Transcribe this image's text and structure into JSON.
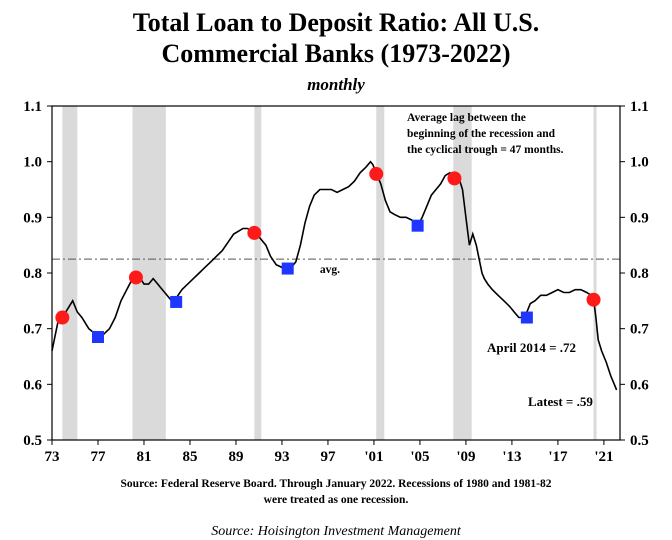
{
  "chart_data": {
    "type": "line",
    "title_line1": "Total Loan to Deposit Ratio: All U.S.",
    "title_line2": "Commercial Banks (1973-2022)",
    "subtitle": "monthly",
    "x_tick_labels": [
      "73",
      "77",
      "81",
      "85",
      "89",
      "93",
      "97",
      "'01",
      "'05",
      "'09",
      "'13",
      "'17",
      "'21"
    ],
    "x_tick_years": [
      1973,
      1977,
      1981,
      1985,
      1989,
      1993,
      1997,
      2001,
      2005,
      2009,
      2013,
      2017,
      2021
    ],
    "xlim": [
      1973,
      2022.4
    ],
    "y_tick_labels": [
      "0.5",
      "0.6",
      "0.7",
      "0.8",
      "0.9",
      "1.0",
      "1.1"
    ],
    "ylim": [
      0.5,
      1.1
    ],
    "grid": false,
    "average": 0.825,
    "avg_label": "avg.",
    "recessions": [
      [
        1973.9,
        1975.2
      ],
      [
        1980.0,
        1982.9
      ],
      [
        1990.6,
        1991.2
      ],
      [
        2001.2,
        2001.9
      ],
      [
        2007.9,
        2009.5
      ],
      [
        2020.1,
        2020.3
      ]
    ],
    "series": [
      {
        "x": [
          1973.0,
          1973.5,
          1973.9,
          1974.5,
          1974.8,
          1975.2,
          1975.6,
          1976.2,
          1976.8,
          1977.0,
          1977.5,
          1978.0,
          1978.5,
          1979.0,
          1979.5,
          1980.0,
          1980.3,
          1980.7,
          1981.0,
          1981.4,
          1981.8,
          1982.2,
          1982.6,
          1983.0,
          1983.4,
          1983.8,
          1984.3,
          1984.8,
          1985.3,
          1985.8,
          1986.3,
          1986.8,
          1987.3,
          1987.8,
          1988.3,
          1988.8,
          1989.2,
          1989.6,
          1990.0,
          1990.4,
          1990.8,
          1991.2,
          1991.6,
          1992.0,
          1992.5,
          1993.0,
          1993.4,
          1993.8,
          1994.2,
          1994.6,
          1995.0,
          1995.4,
          1995.8,
          1996.3,
          1996.8,
          1997.3,
          1997.8,
          1998.3,
          1998.8,
          1999.3,
          1999.8,
          2000.3,
          2000.7,
          2000.9,
          2001.2,
          2001.6,
          2002.0,
          2002.4,
          2002.8,
          2003.3,
          2003.8,
          2004.3,
          2004.8,
          2005.2,
          2005.6,
          2006.0,
          2006.4,
          2006.8,
          2007.2,
          2007.6,
          2007.9,
          2008.1,
          2008.4,
          2008.7,
          2009.0,
          2009.3,
          2009.6,
          2009.9,
          2010.2,
          2010.4,
          2010.6,
          2010.9,
          2011.3,
          2011.8,
          2012.3,
          2012.8,
          2013.2,
          2013.6,
          2014.0,
          2014.3,
          2014.6,
          2015.0,
          2015.5,
          2016.0,
          2016.5,
          2017.0,
          2017.5,
          2018.0,
          2018.5,
          2019.0,
          2019.5,
          2019.9,
          2020.1,
          2020.3,
          2020.5,
          2020.8,
          2021.2,
          2021.6,
          2021.9,
          2022.1
        ],
        "y": [
          0.66,
          0.71,
          0.72,
          0.74,
          0.75,
          0.73,
          0.72,
          0.7,
          0.69,
          0.685,
          0.69,
          0.7,
          0.72,
          0.75,
          0.77,
          0.79,
          0.8,
          0.79,
          0.78,
          0.78,
          0.79,
          0.78,
          0.77,
          0.76,
          0.75,
          0.755,
          0.77,
          0.78,
          0.79,
          0.8,
          0.81,
          0.82,
          0.83,
          0.84,
          0.855,
          0.87,
          0.875,
          0.88,
          0.88,
          0.875,
          0.87,
          0.86,
          0.85,
          0.83,
          0.815,
          0.81,
          0.81,
          0.81,
          0.82,
          0.85,
          0.89,
          0.92,
          0.94,
          0.95,
          0.95,
          0.95,
          0.945,
          0.95,
          0.955,
          0.965,
          0.98,
          0.99,
          1.0,
          0.995,
          0.98,
          0.96,
          0.93,
          0.91,
          0.905,
          0.9,
          0.9,
          0.895,
          0.885,
          0.9,
          0.92,
          0.94,
          0.95,
          0.96,
          0.975,
          0.98,
          0.97,
          0.975,
          0.97,
          0.95,
          0.9,
          0.85,
          0.87,
          0.85,
          0.82,
          0.8,
          0.79,
          0.78,
          0.77,
          0.76,
          0.75,
          0.74,
          0.73,
          0.72,
          0.72,
          0.73,
          0.745,
          0.75,
          0.76,
          0.76,
          0.765,
          0.77,
          0.765,
          0.765,
          0.77,
          0.77,
          0.765,
          0.76,
          0.752,
          0.72,
          0.68,
          0.66,
          0.64,
          0.615,
          0.6,
          0.59
        ]
      }
    ],
    "peaks": [
      [
        1973.9,
        0.72
      ],
      [
        1980.3,
        0.792
      ],
      [
        1990.6,
        0.872
      ],
      [
        2001.2,
        0.978
      ],
      [
        2008.0,
        0.97
      ],
      [
        2020.1,
        0.752
      ]
    ],
    "troughs": [
      [
        1977.0,
        0.685
      ],
      [
        1983.8,
        0.748
      ],
      [
        1993.5,
        0.808
      ],
      [
        2004.8,
        0.885
      ],
      [
        2014.3,
        0.72
      ]
    ],
    "lag_note": [
      "Average lag between the",
      "beginning of the recession and",
      "the cyclical trough =  47 months."
    ],
    "april_2014_label": "April 2014 = .72",
    "latest_label": "Latest = .59",
    "source_note": [
      "Source: Federal Reserve Board. Through January 2022. Recessions of 1980 and 1981-82",
      "were treated as one recession."
    ],
    "footer_source": "Source: Hoisington Investment Management",
    "colors": {
      "line": "#000000",
      "peak": "#ff1a1a",
      "trough": "#1f36ff",
      "recession": "#dadada",
      "avg_line": "#555555"
    }
  }
}
